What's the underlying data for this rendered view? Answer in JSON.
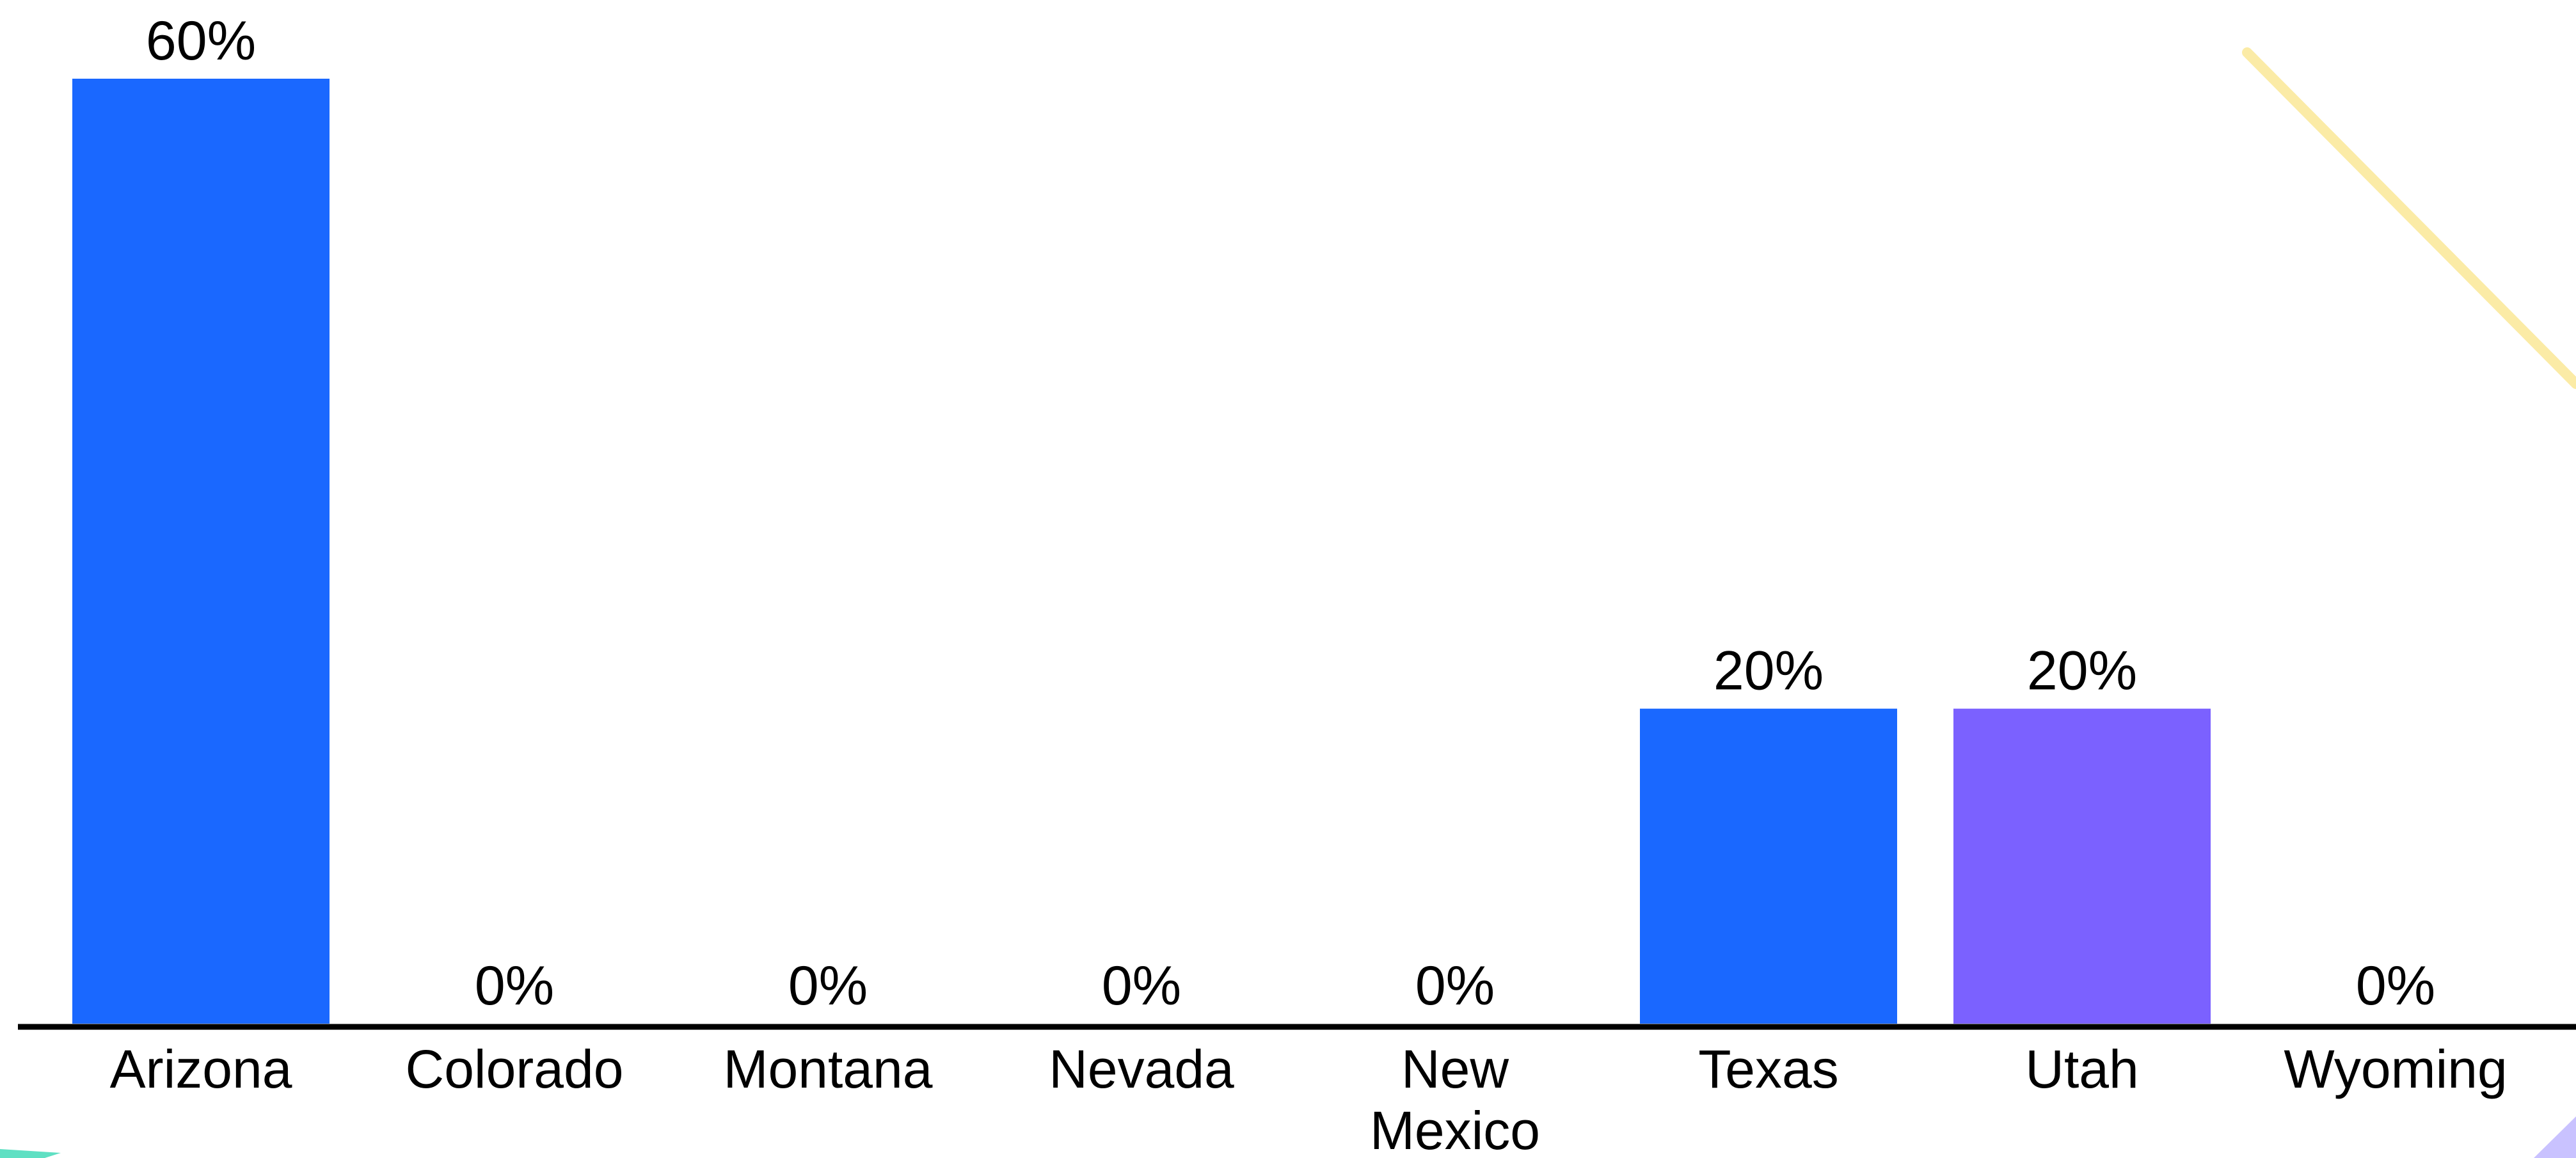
{
  "chart_data": {
    "type": "bar",
    "categories": [
      "Arizona",
      "Colorado",
      "Montana",
      "Nevada",
      "New Mexico",
      "Texas",
      "Utah",
      "Wyoming"
    ],
    "category_lines": [
      [
        "Arizona"
      ],
      [
        "Colorado"
      ],
      [
        "Montana"
      ],
      [
        "Nevada"
      ],
      [
        "New",
        "Mexico"
      ],
      [
        "Texas"
      ],
      [
        "Utah"
      ],
      [
        "Wyoming"
      ]
    ],
    "values": [
      60,
      0,
      0,
      0,
      0,
      20,
      20,
      0
    ],
    "value_labels": [
      "60%",
      "0%",
      "0%",
      "0%",
      "0%",
      "20%",
      "20%",
      "0%"
    ],
    "bar_colors": [
      "#1A68FF",
      "#1A68FF",
      "#1A68FF",
      "#1A68FF",
      "#1A68FF",
      "#1A68FF",
      "#7B61FF",
      "#1A68FF"
    ],
    "ylim": [
      0,
      60
    ],
    "grid": false,
    "legend": "none",
    "title": "",
    "xlabel": "",
    "ylabel": ""
  },
  "colors": {
    "bar_primary": "#1A68FF",
    "bar_highlight": "#7B61FF",
    "baseline": "#000000",
    "decor_yellow": "#FBEBA6",
    "decor_teal": "#5FE0C3",
    "decor_purple": "#C9C2FF"
  }
}
